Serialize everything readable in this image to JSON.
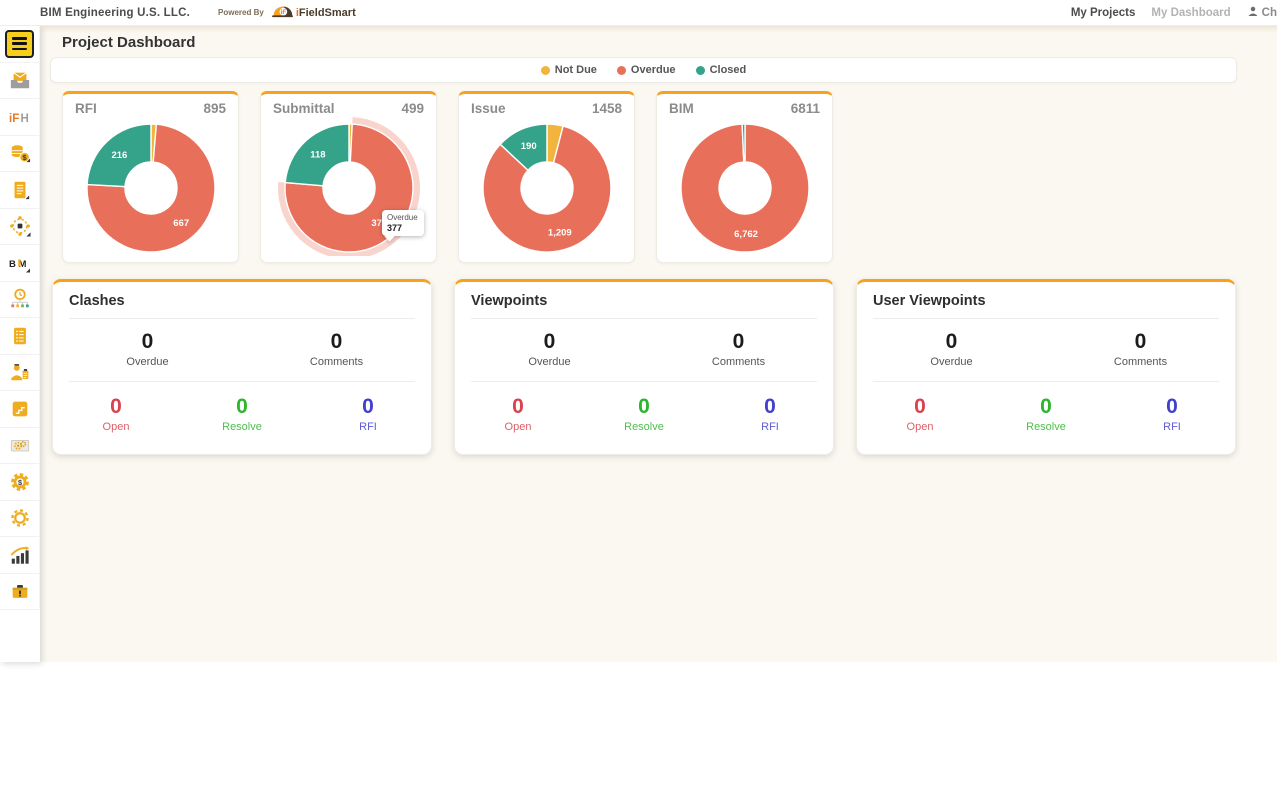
{
  "header": {
    "brand": "BIM Engineering U.S. LLC.",
    "powered_by": "Powered By",
    "logo_i": "i",
    "logo_rest": "FieldSmart",
    "nav": [
      {
        "label": "My Projects"
      },
      {
        "label": "My Dashboard"
      }
    ],
    "user_label": "Ch"
  },
  "sidebar": {
    "items": [
      "menu",
      "mail-inbox",
      "ifieldsmart-home",
      "finance-coins",
      "invoice-documents",
      "hub-target",
      "bim-module",
      "schedule-network",
      "task-list",
      "field-reports",
      "submittals",
      "drawings-gears",
      "cost-gear",
      "settings-gear",
      "analytics-growth",
      "toolbox"
    ]
  },
  "page": {
    "title": "Project Dashboard"
  },
  "legend": [
    {
      "label": "Not Due"
    },
    {
      "label": "Overdue"
    },
    {
      "label": "Closed"
    }
  ],
  "colors": {
    "not_due": "#F2B43C",
    "overdue": "#E8705A",
    "closed": "#35A28A",
    "accent_orange": "#F9A11B",
    "open_red": "#D9434E",
    "resolve_green": "#2DB52D",
    "rfi_blue": "#4340CE",
    "sidebar_yellow": "#F7CE1B",
    "icon_yellow": "#EFAC1E"
  },
  "chart_data": [
    {
      "type": "pie",
      "title": "RFI",
      "total": "895",
      "categories": [
        "Not Due",
        "Overdue",
        "Closed"
      ],
      "values": [
        12,
        667,
        216
      ],
      "labels": [
        "",
        "667",
        "216"
      ]
    },
    {
      "type": "pie",
      "title": "Submittal",
      "total": "499",
      "categories": [
        "Not Due",
        "Overdue",
        "Closed"
      ],
      "values": [
        4,
        377,
        118
      ],
      "labels": [
        "",
        "377",
        "118"
      ],
      "highlight_index": 1,
      "tooltip": {
        "label": "Overdue",
        "value": "377"
      }
    },
    {
      "type": "pie",
      "title": "Issue",
      "total": "1458",
      "categories": [
        "Not Due",
        "Overdue",
        "Closed"
      ],
      "values": [
        59,
        1209,
        190
      ],
      "labels": [
        "",
        "1,209",
        "190"
      ]
    },
    {
      "type": "pie",
      "title": "BIM",
      "total": "6811",
      "categories": [
        "Not Due",
        "Overdue",
        "Closed"
      ],
      "values": [
        0,
        6762,
        49
      ],
      "labels": [
        "",
        "6,762",
        ""
      ]
    }
  ],
  "stat_cards": [
    {
      "title": "Clashes",
      "top": [
        {
          "value": "0",
          "label": "Overdue"
        },
        {
          "value": "0",
          "label": "Comments"
        }
      ],
      "bottom": [
        {
          "value": "0",
          "label": "Open"
        },
        {
          "value": "0",
          "label": "Resolve"
        },
        {
          "value": "0",
          "label": "RFI"
        }
      ]
    },
    {
      "title": "Viewpoints",
      "top": [
        {
          "value": "0",
          "label": "Overdue"
        },
        {
          "value": "0",
          "label": "Comments"
        }
      ],
      "bottom": [
        {
          "value": "0",
          "label": "Open"
        },
        {
          "value": "0",
          "label": "Resolve"
        },
        {
          "value": "0",
          "label": "RFI"
        }
      ]
    },
    {
      "title": "User Viewpoints",
      "top": [
        {
          "value": "0",
          "label": "Overdue"
        },
        {
          "value": "0",
          "label": "Comments"
        }
      ],
      "bottom": [
        {
          "value": "0",
          "label": "Open"
        },
        {
          "value": "0",
          "label": "Resolve"
        },
        {
          "value": "0",
          "label": "RFI"
        }
      ]
    }
  ]
}
